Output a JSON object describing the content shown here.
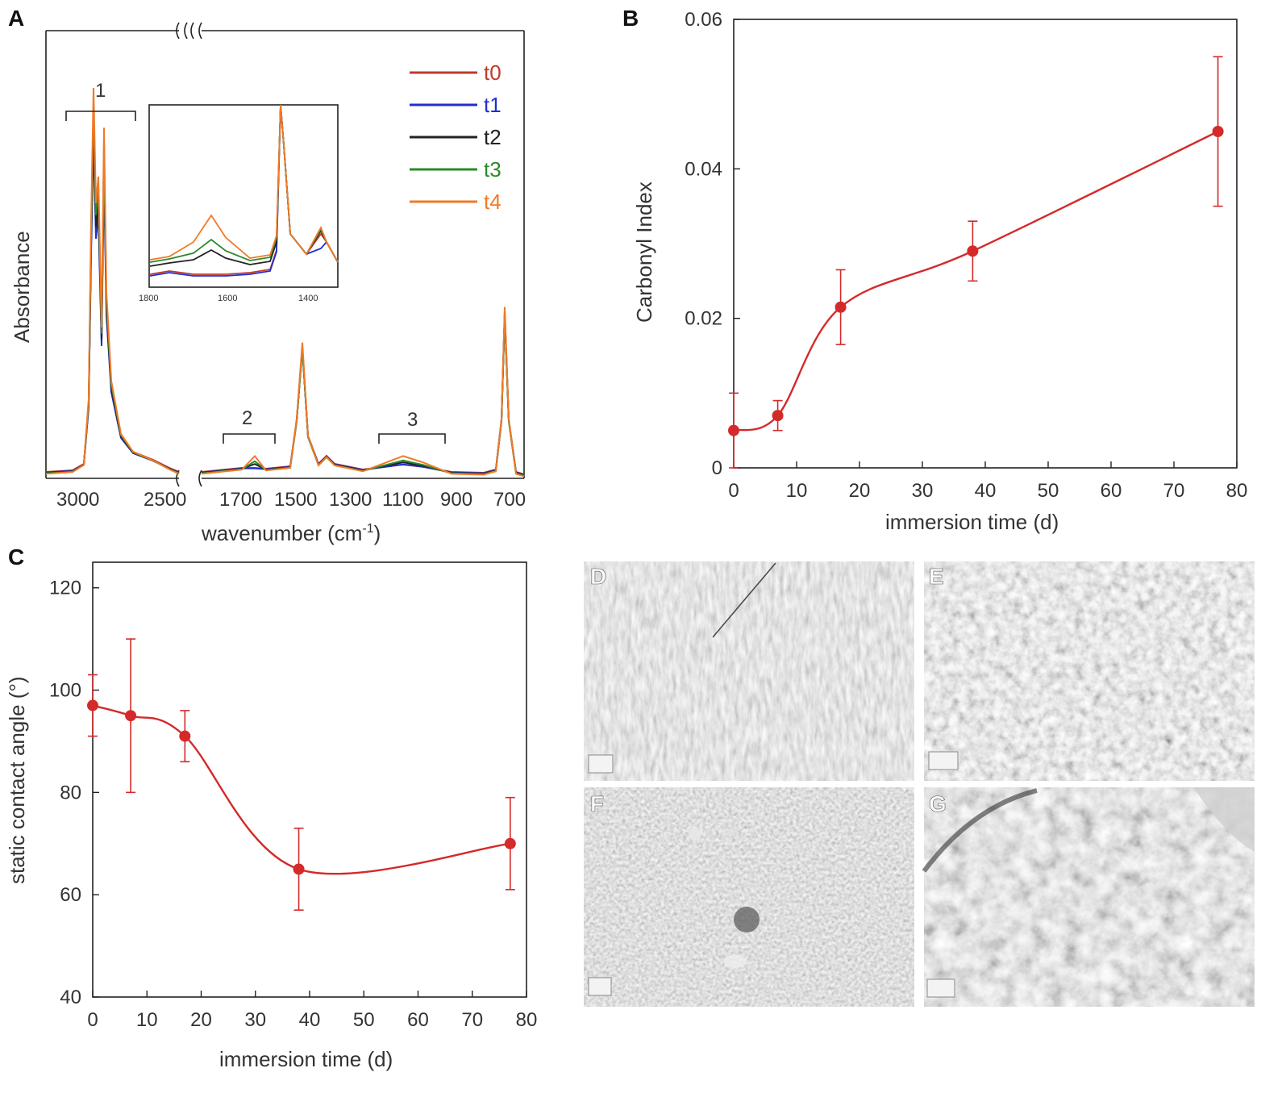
{
  "colors": {
    "t0": "#c0392b",
    "t1": "#1f2fd0",
    "t2": "#222222",
    "t3": "#2a8a2a",
    "t4": "#f07a28",
    "trend": "#d42a2a"
  },
  "chart_data": [
    {
      "panel": "A",
      "type": "line",
      "xlabel": "wavenumber (cm",
      "xlabel_sup": "-1",
      "xlabel_close": ")",
      "ylabel": "Absorbance",
      "x_ticks_left": [
        "3000",
        "2500"
      ],
      "x_ticks_right": [
        "1700",
        "1500",
        "1300",
        "1100",
        "900",
        "700"
      ],
      "band_labels": [
        "1",
        "2",
        "3"
      ],
      "series": [
        {
          "name": "t0"
        },
        {
          "name": "t1"
        },
        {
          "name": "t2"
        },
        {
          "name": "t3"
        },
        {
          "name": "t4"
        }
      ],
      "inset": {
        "x_ticks": [
          "1800",
          "1600",
          "1400"
        ]
      }
    },
    {
      "panel": "B",
      "type": "line",
      "xlabel": "immersion time (d)",
      "ylabel": "Carbonyl Index",
      "xlim": [
        0,
        80
      ],
      "ylim": [
        0,
        0.06
      ],
      "x_ticks": [
        "0",
        "10",
        "20",
        "30",
        "40",
        "50",
        "60",
        "70",
        "80"
      ],
      "y_ticks": [
        "0",
        "0.02",
        "0.04",
        "0.06"
      ],
      "points": [
        {
          "x": 0,
          "y": 0.005,
          "err": 0.005
        },
        {
          "x": 7,
          "y": 0.007,
          "err": 0.002
        },
        {
          "x": 17,
          "y": 0.0215,
          "err": 0.005
        },
        {
          "x": 38,
          "y": 0.029,
          "err": 0.004
        },
        {
          "x": 77,
          "y": 0.045,
          "err": 0.01
        }
      ]
    },
    {
      "panel": "C",
      "type": "line",
      "xlabel": "immersion time (d)",
      "ylabel": "static contact angle (°)",
      "xlim": [
        0,
        80
      ],
      "ylim": [
        40,
        125
      ],
      "x_ticks": [
        "0",
        "10",
        "20",
        "30",
        "40",
        "50",
        "60",
        "70",
        "80"
      ],
      "y_ticks": [
        "40",
        "60",
        "80",
        "100",
        "120"
      ],
      "points": [
        {
          "x": 0,
          "y": 97,
          "err": 6
        },
        {
          "x": 7,
          "y": 95,
          "err": 15
        },
        {
          "x": 17,
          "y": 91,
          "err": 5
        },
        {
          "x": 38,
          "y": 65,
          "err": 8
        },
        {
          "x": 77,
          "y": 70,
          "err": 9
        }
      ]
    }
  ],
  "panels": {
    "A": "A",
    "B": "B",
    "C": "C",
    "D": "D",
    "E": "E",
    "F": "F",
    "G": "G"
  },
  "sem_images": [
    {
      "label": "D",
      "description": "smooth striated surface"
    },
    {
      "label": "E",
      "description": "wrinkled surface"
    },
    {
      "label": "F",
      "description": "pitted surface"
    },
    {
      "label": "G",
      "description": "eroded surface"
    }
  ]
}
